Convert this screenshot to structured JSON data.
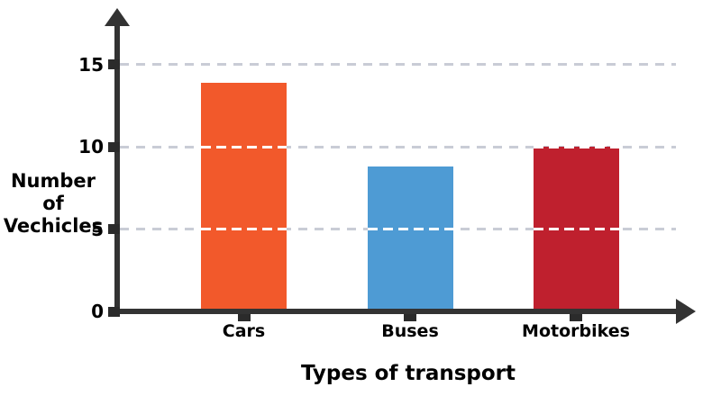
{
  "chart_data": {
    "type": "bar",
    "categories": [
      "Cars",
      "Buses",
      "Motorbikes"
    ],
    "values": [
      13.9,
      8.8,
      10
    ],
    "bar_colors": [
      "#F2592B",
      "#4E9BD4",
      "#BF202E"
    ],
    "title": "",
    "xlabel": "Types of transport",
    "ylabel": "Number of Vechicles",
    "ylabel_lines": [
      "Number of",
      "Vechicles"
    ],
    "yticks": [
      0,
      5,
      10,
      15
    ],
    "gridline_values": [
      5,
      10,
      15
    ],
    "ylim": [
      0,
      17
    ],
    "grid": "horizontal dashed gridlines at 5, 10, 15; white dashes where they cross bars",
    "legend": "none",
    "axis_color": "#333333",
    "gridline_color": "#c9ccd6",
    "text_color": "#000000",
    "background_color": "#ffffff",
    "arrows": "arrowheads at top of y-axis and right end of x-axis"
  }
}
